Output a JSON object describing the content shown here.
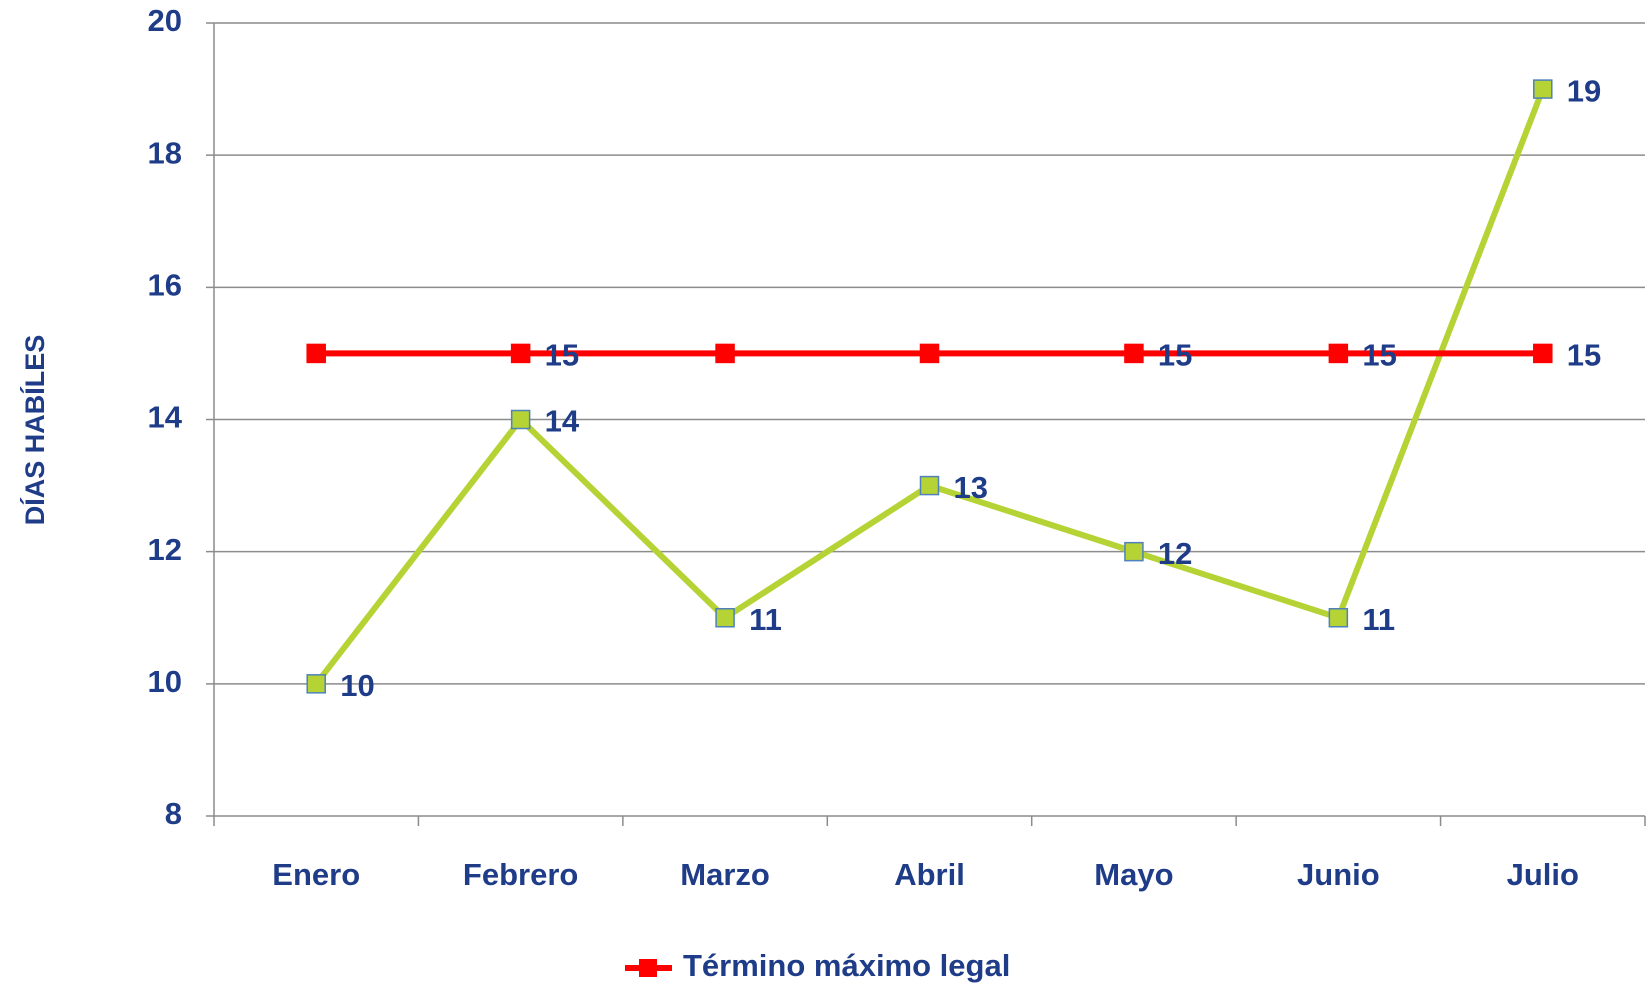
{
  "chart_data": {
    "type": "line",
    "ylabel": "DÍAS HABÍLES",
    "categories": [
      "Enero",
      "Febrero",
      "Marzo",
      "Abril",
      "Mayo",
      "Junio",
      "Julio"
    ],
    "series": [
      {
        "color": "#b5d334",
        "marker_edge": "#4f81bd",
        "values": [
          10,
          14,
          11,
          13,
          12,
          11,
          19
        ]
      },
      {
        "name": "Término máximo legal",
        "color": "#ff0000",
        "values": [
          15,
          15,
          15,
          15,
          15,
          15,
          15
        ],
        "value_labels": [
          null,
          "15",
          null,
          null,
          "15",
          "15",
          "15"
        ]
      }
    ],
    "ylim": [
      8,
      20
    ],
    "yticks": [
      8,
      10,
      12,
      14,
      16,
      18,
      20
    ],
    "grid": true,
    "legend": "bottom"
  }
}
